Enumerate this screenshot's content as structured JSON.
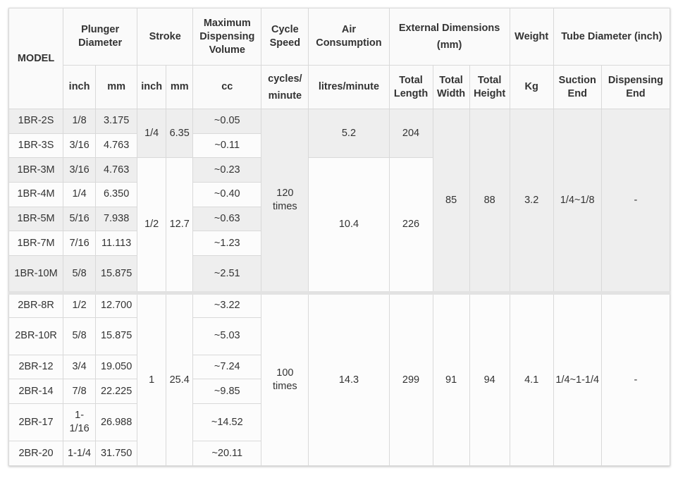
{
  "headers": {
    "model": "MODEL",
    "plunger_diameter": "Plunger Diameter",
    "stroke": "Stroke",
    "max_volume": "Maximum Dispensing Volume",
    "cycle_speed": "Cycle Speed",
    "air_consumption": "Air Consumption",
    "external_dimensions": "External Dimensions",
    "external_dimensions_unit": "(mm)",
    "weight": "Weight",
    "tube_diameter": "Tube Diameter (inch)"
  },
  "subheaders": {
    "plunger_inch": "inch",
    "plunger_mm": "mm",
    "stroke_inch": "inch",
    "stroke_mm": "mm",
    "volume_unit": "cc",
    "cycle_unit_1": "cycles/",
    "cycle_unit_2": "minute",
    "air_unit": "litres/minute",
    "total_length": "Total Length",
    "total_width": "Total Width",
    "total_height": "Total Height",
    "weight_unit": "Kg",
    "suction_end": "Suction End",
    "dispensing_end": "Dispensing End"
  },
  "rows": [
    {
      "model": "1BR-2S",
      "plunger_inch": "1/8",
      "plunger_mm": "3.175",
      "volume": "~0.05"
    },
    {
      "model": "1BR-3S",
      "plunger_inch": "3/16",
      "plunger_mm": "4.763",
      "volume": "~0.11"
    },
    {
      "model": "1BR-3M",
      "plunger_inch": "3/16",
      "plunger_mm": "4.763",
      "volume": "~0.23"
    },
    {
      "model": "1BR-4M",
      "plunger_inch": "1/4",
      "plunger_mm": "6.350",
      "volume": "~0.40"
    },
    {
      "model": "1BR-5M",
      "plunger_inch": "5/16",
      "plunger_mm": "7.938",
      "volume": "~0.63"
    },
    {
      "model": "1BR-7M",
      "plunger_inch": "7/16",
      "plunger_mm": "11.113",
      "volume": "~1.23"
    },
    {
      "model": "1BR-10M",
      "plunger_inch": "5/8",
      "plunger_mm": "15.875",
      "volume": "~2.51"
    },
    {
      "model": "2BR-8R",
      "plunger_inch": "1/2",
      "plunger_mm": "12.700",
      "volume": "~3.22"
    },
    {
      "model": "2BR-10R",
      "plunger_inch": "5/8",
      "plunger_mm": "15.875",
      "volume": "~5.03"
    },
    {
      "model": "2BR-12",
      "plunger_inch": "3/4",
      "plunger_mm": "19.050",
      "volume": "~7.24"
    },
    {
      "model": "2BR-14",
      "plunger_inch": "7/8",
      "plunger_mm": "22.225",
      "volume": "~9.85"
    },
    {
      "model": "2BR-17",
      "plunger_inch": "1-1/16",
      "plunger_mm": "26.988",
      "volume": "~14.52"
    },
    {
      "model": "2BR-20",
      "plunger_inch": "1-1/4",
      "plunger_mm": "31.750",
      "volume": "~20.11"
    }
  ],
  "merged": {
    "stroke_a_inch": "1/4",
    "stroke_a_mm": "6.35",
    "stroke_b_inch": "1/2",
    "stroke_b_mm": "12.7",
    "stroke_c_inch": "1",
    "stroke_c_mm": "25.4",
    "cycle_1br": "120 times",
    "cycle_2br": "100 times",
    "air_a": "5.2",
    "air_b": "10.4",
    "air_c": "14.3",
    "length_a": "204",
    "length_b": "226",
    "length_c": "299",
    "width_1br": "85",
    "width_2br": "91",
    "height_1br": "88",
    "height_2br": "94",
    "weight_1br": "3.2",
    "weight_2br": "4.1",
    "suction_1br": "1/4~1/8",
    "suction_2br": "1/4~1-1/4",
    "dispensing_1br": "-",
    "dispensing_2br": "-"
  }
}
